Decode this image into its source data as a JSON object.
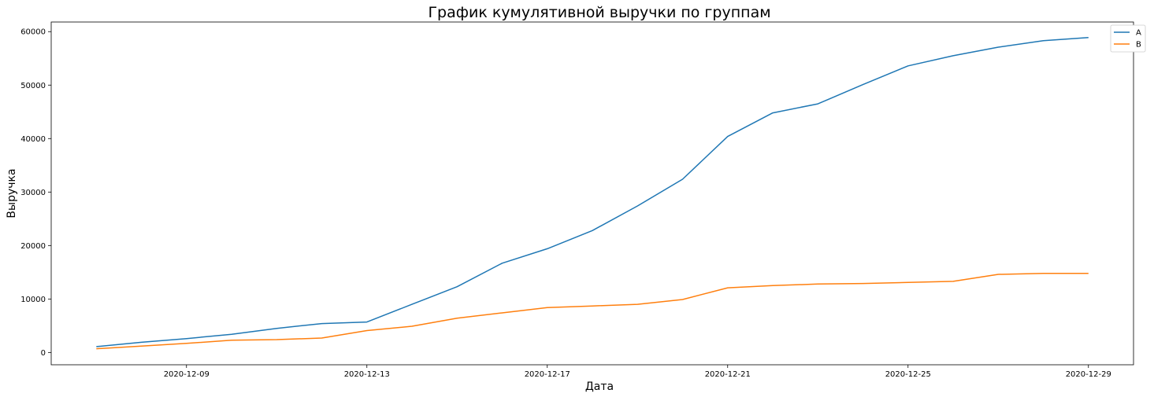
{
  "chart_data": {
    "type": "line",
    "title": "График кумулятивной выручки по группам",
    "xlabel": "Дата",
    "ylabel": "Выручка",
    "x": [
      "2020-12-07",
      "2020-12-08",
      "2020-12-09",
      "2020-12-10",
      "2020-12-11",
      "2020-12-12",
      "2020-12-13",
      "2020-12-14",
      "2020-12-15",
      "2020-12-16",
      "2020-12-17",
      "2020-12-18",
      "2020-12-19",
      "2020-12-20",
      "2020-12-21",
      "2020-12-22",
      "2020-12-23",
      "2020-12-24",
      "2020-12-25",
      "2020-12-26",
      "2020-12-27",
      "2020-12-28",
      "2020-12-29"
    ],
    "x_ticks": [
      "2020-12-09",
      "2020-12-13",
      "2020-12-17",
      "2020-12-21",
      "2020-12-25",
      "2020-12-29"
    ],
    "y_ticks": [
      0,
      10000,
      20000,
      30000,
      40000,
      50000,
      60000
    ],
    "ylim": [
      -2300,
      61800
    ],
    "xlim": [
      "2020-12-06",
      "2020-12-30"
    ],
    "grid": false,
    "legend_position": "top-right",
    "series": [
      {
        "name": "A",
        "color": "#1f77b4",
        "values": [
          1100,
          1900,
          2600,
          3400,
          4500,
          5400,
          5700,
          9000,
          12300,
          16700,
          19400,
          22800,
          27400,
          32400,
          40400,
          44800,
          46500,
          50100,
          53600,
          55500,
          57100,
          58300,
          58900
        ]
      },
      {
        "name": "B",
        "color": "#ff7f0e",
        "values": [
          700,
          1200,
          1700,
          2300,
          2400,
          2700,
          4100,
          4900,
          6400,
          7400,
          8400,
          8700,
          9000,
          9900,
          12100,
          12500,
          12800,
          12900,
          13100,
          13300,
          14600,
          14800,
          14800
        ]
      }
    ]
  }
}
